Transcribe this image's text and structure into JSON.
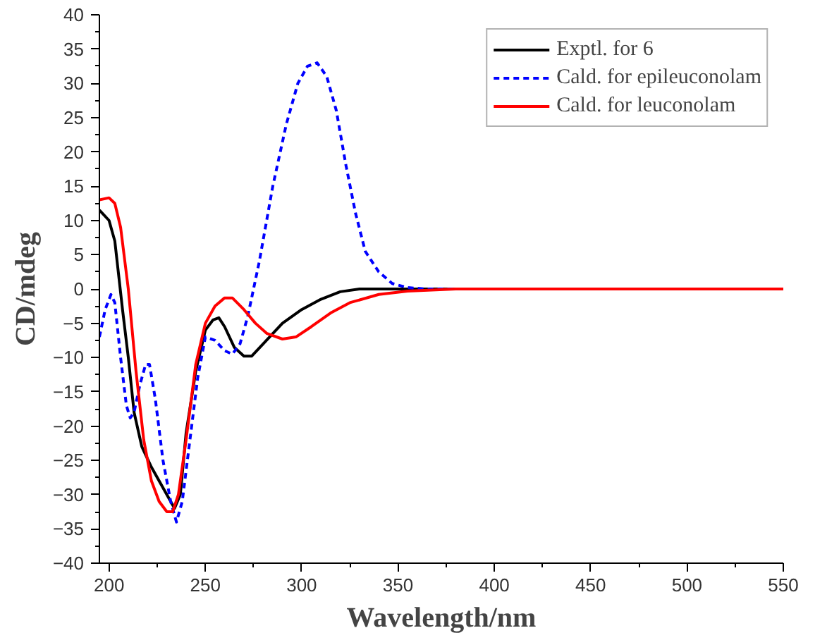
{
  "chart_data": {
    "type": "line",
    "xlabel": "Wavelength/nm",
    "ylabel": "CD/mdeg",
    "xlim": [
      195,
      550
    ],
    "ylim": [
      -40,
      40
    ],
    "xticks": [
      200,
      250,
      300,
      350,
      400,
      450,
      500,
      550
    ],
    "yticks": [
      -40,
      -35,
      -30,
      -25,
      -20,
      -15,
      -10,
      -5,
      0,
      5,
      10,
      15,
      20,
      25,
      30,
      35,
      40
    ],
    "grid": false,
    "legend": "top right",
    "marker": "none",
    "series": [
      {
        "name": "Exptl. for 6",
        "color": "#000000",
        "line_style": "solid",
        "x": [
          195,
          200,
          203,
          207,
          210,
          213,
          217,
          222,
          228,
          234,
          237,
          240,
          245,
          250,
          254,
          257,
          260,
          265,
          270,
          274,
          280,
          290,
          300,
          310,
          320,
          330,
          350,
          550
        ],
        "values": [
          11.5,
          10,
          7,
          -3,
          -10,
          -18,
          -23,
          -26,
          -29,
          -32,
          -30,
          -21,
          -12,
          -6,
          -4.5,
          -4.2,
          -5.5,
          -8.5,
          -9.8,
          -9.8,
          -8,
          -5,
          -3,
          -1.5,
          -0.4,
          0,
          0,
          0
        ]
      },
      {
        "name": "Cald. for epileuconolam",
        "color": "#0000ff",
        "line_style": "dashed",
        "x": [
          195,
          198,
          201,
          203,
          206,
          209,
          211,
          213,
          216,
          219,
          221,
          224,
          228,
          232,
          235,
          238,
          242,
          246,
          250,
          255,
          260,
          264,
          268,
          272,
          278,
          285,
          292,
          298,
          303,
          308,
          313,
          318,
          323,
          328,
          333,
          340,
          347,
          355,
          365,
          550
        ],
        "values": [
          -7,
          -3,
          -0.8,
          -2,
          -10,
          -17,
          -18.8,
          -18,
          -14,
          -11,
          -11,
          -16,
          -25,
          -31,
          -34,
          -31,
          -22,
          -13,
          -7,
          -7.5,
          -9,
          -9.5,
          -8,
          -4,
          4,
          15,
          24,
          30,
          32.5,
          33,
          31,
          26,
          18,
          11,
          5.5,
          2.5,
          0.8,
          0.2,
          0,
          0
        ]
      },
      {
        "name": "Cald. for leuconolam",
        "color": "#ff0000",
        "line_style": "solid",
        "x": [
          195,
          200,
          203,
          206,
          210,
          214,
          218,
          222,
          226,
          230,
          233,
          236,
          240,
          245,
          250,
          255,
          260,
          264,
          270,
          276,
          282,
          290,
          297,
          305,
          315,
          325,
          340,
          355,
          380,
          550
        ],
        "values": [
          13,
          13.3,
          12.5,
          9,
          0,
          -12,
          -22,
          -28,
          -31,
          -32.5,
          -32.5,
          -30,
          -22,
          -11,
          -5,
          -2.5,
          -1.3,
          -1.3,
          -3,
          -5,
          -6.5,
          -7.3,
          -7,
          -5.5,
          -3.5,
          -2,
          -0.8,
          -0.3,
          0,
          0
        ]
      }
    ]
  }
}
